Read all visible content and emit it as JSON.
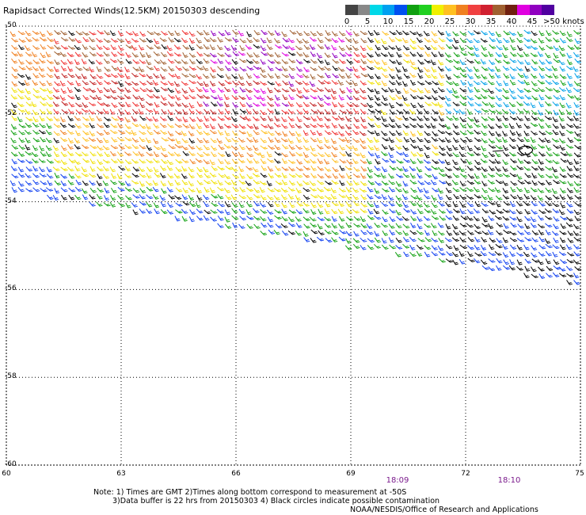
{
  "title": "Rapidsact Corrected Winds(12.5KM) 20150303 descending",
  "legend": {
    "colors": [
      "#444444",
      "#888888",
      "#00d8e8",
      "#00a0f0",
      "#0050f0",
      "#10a010",
      "#20d020",
      "#f0f000",
      "#ffc020",
      "#f08020",
      "#f04040",
      "#d02030",
      "#a06030",
      "#702010",
      "#e000e0",
      "#9000c0",
      "#5000a0"
    ],
    "labels": [
      "0",
      "5",
      "10",
      "15",
      "20",
      "25",
      "30",
      "35",
      "40",
      "45"
    ],
    "last_label": ">50 knots"
  },
  "lat_labels": [
    "-50",
    "-52",
    "-54",
    "-56",
    "-58",
    "-60"
  ],
  "lon_labels": [
    "60",
    "63",
    "66",
    "69",
    "72",
    "75"
  ],
  "time_labels": [
    "18:09",
    "18:10"
  ],
  "notes": {
    "line1": "Note: 1) Times are GMT 2)Times along bottom correspond to measurement at -50S",
    "line2": "3)Data buffer is 22 hrs from 20150303 4) Black circles indicate possible contamination",
    "credit": "NOAA/NESDIS/Office of Research and Applications"
  },
  "map": {
    "lat_range": [
      -60,
      -50
    ],
    "lon_range": [
      60,
      75
    ],
    "grid": "dotted",
    "palette": [
      "#000000",
      "#1040f0",
      "#00a0e8",
      "#10a010",
      "#f0e000",
      "#ffc020",
      "#f08020",
      "#f03030",
      "#c02020",
      "#a06030",
      "#e000e0",
      "#9000c0"
    ]
  }
}
